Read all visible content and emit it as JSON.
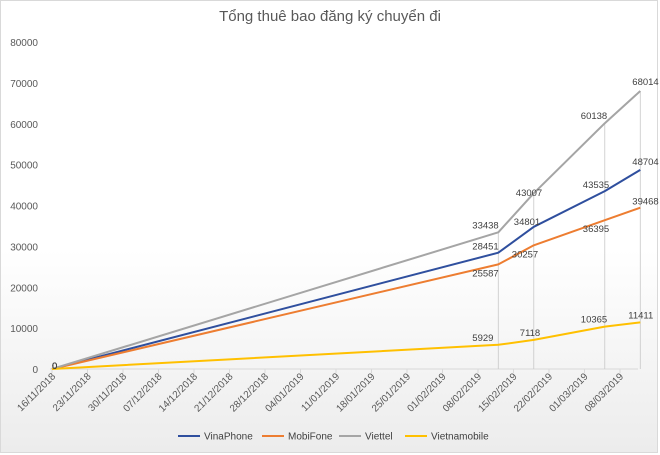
{
  "chart_data": {
    "type": "line",
    "title": "Tổng thuê bao đăng ký chuyển đi",
    "xlabel": "",
    "ylabel": "",
    "ylim": [
      0,
      80000
    ],
    "yticks": [
      0,
      10000,
      20000,
      30000,
      40000,
      50000,
      60000,
      70000,
      80000
    ],
    "x_tick_labels": [
      "16/11/2018",
      "23/11/2018",
      "30/11/2018",
      "07/12/2018",
      "14/12/2018",
      "21/12/2018",
      "28/12/2018",
      "04/01/2019",
      "11/01/2019",
      "18/01/2019",
      "25/01/2019",
      "01/02/2019",
      "08/02/2019",
      "15/02/2019",
      "22/02/2019",
      "01/03/2019",
      "08/03/2019"
    ],
    "x": [
      "16/11/2018",
      "12/02/2019",
      "19/02/2019",
      "05/03/2019",
      "12/03/2019"
    ],
    "grid": false,
    "legend_position": "bottom",
    "series": [
      {
        "name": "VinaPhone",
        "color": "#2f4f9e",
        "values": [
          0,
          28451,
          34801,
          43535,
          48704
        ]
      },
      {
        "name": "MobiFone",
        "color": "#ed7d31",
        "values": [
          0,
          25587,
          30257,
          36395,
          39468
        ]
      },
      {
        "name": "Viettel",
        "color": "#a5a5a5",
        "values": [
          0,
          33438,
          43007,
          60138,
          68014
        ]
      },
      {
        "name": "Vietnamobile",
        "color": "#ffc000",
        "values": [
          0,
          5929,
          7118,
          10365,
          11411
        ]
      }
    ]
  }
}
